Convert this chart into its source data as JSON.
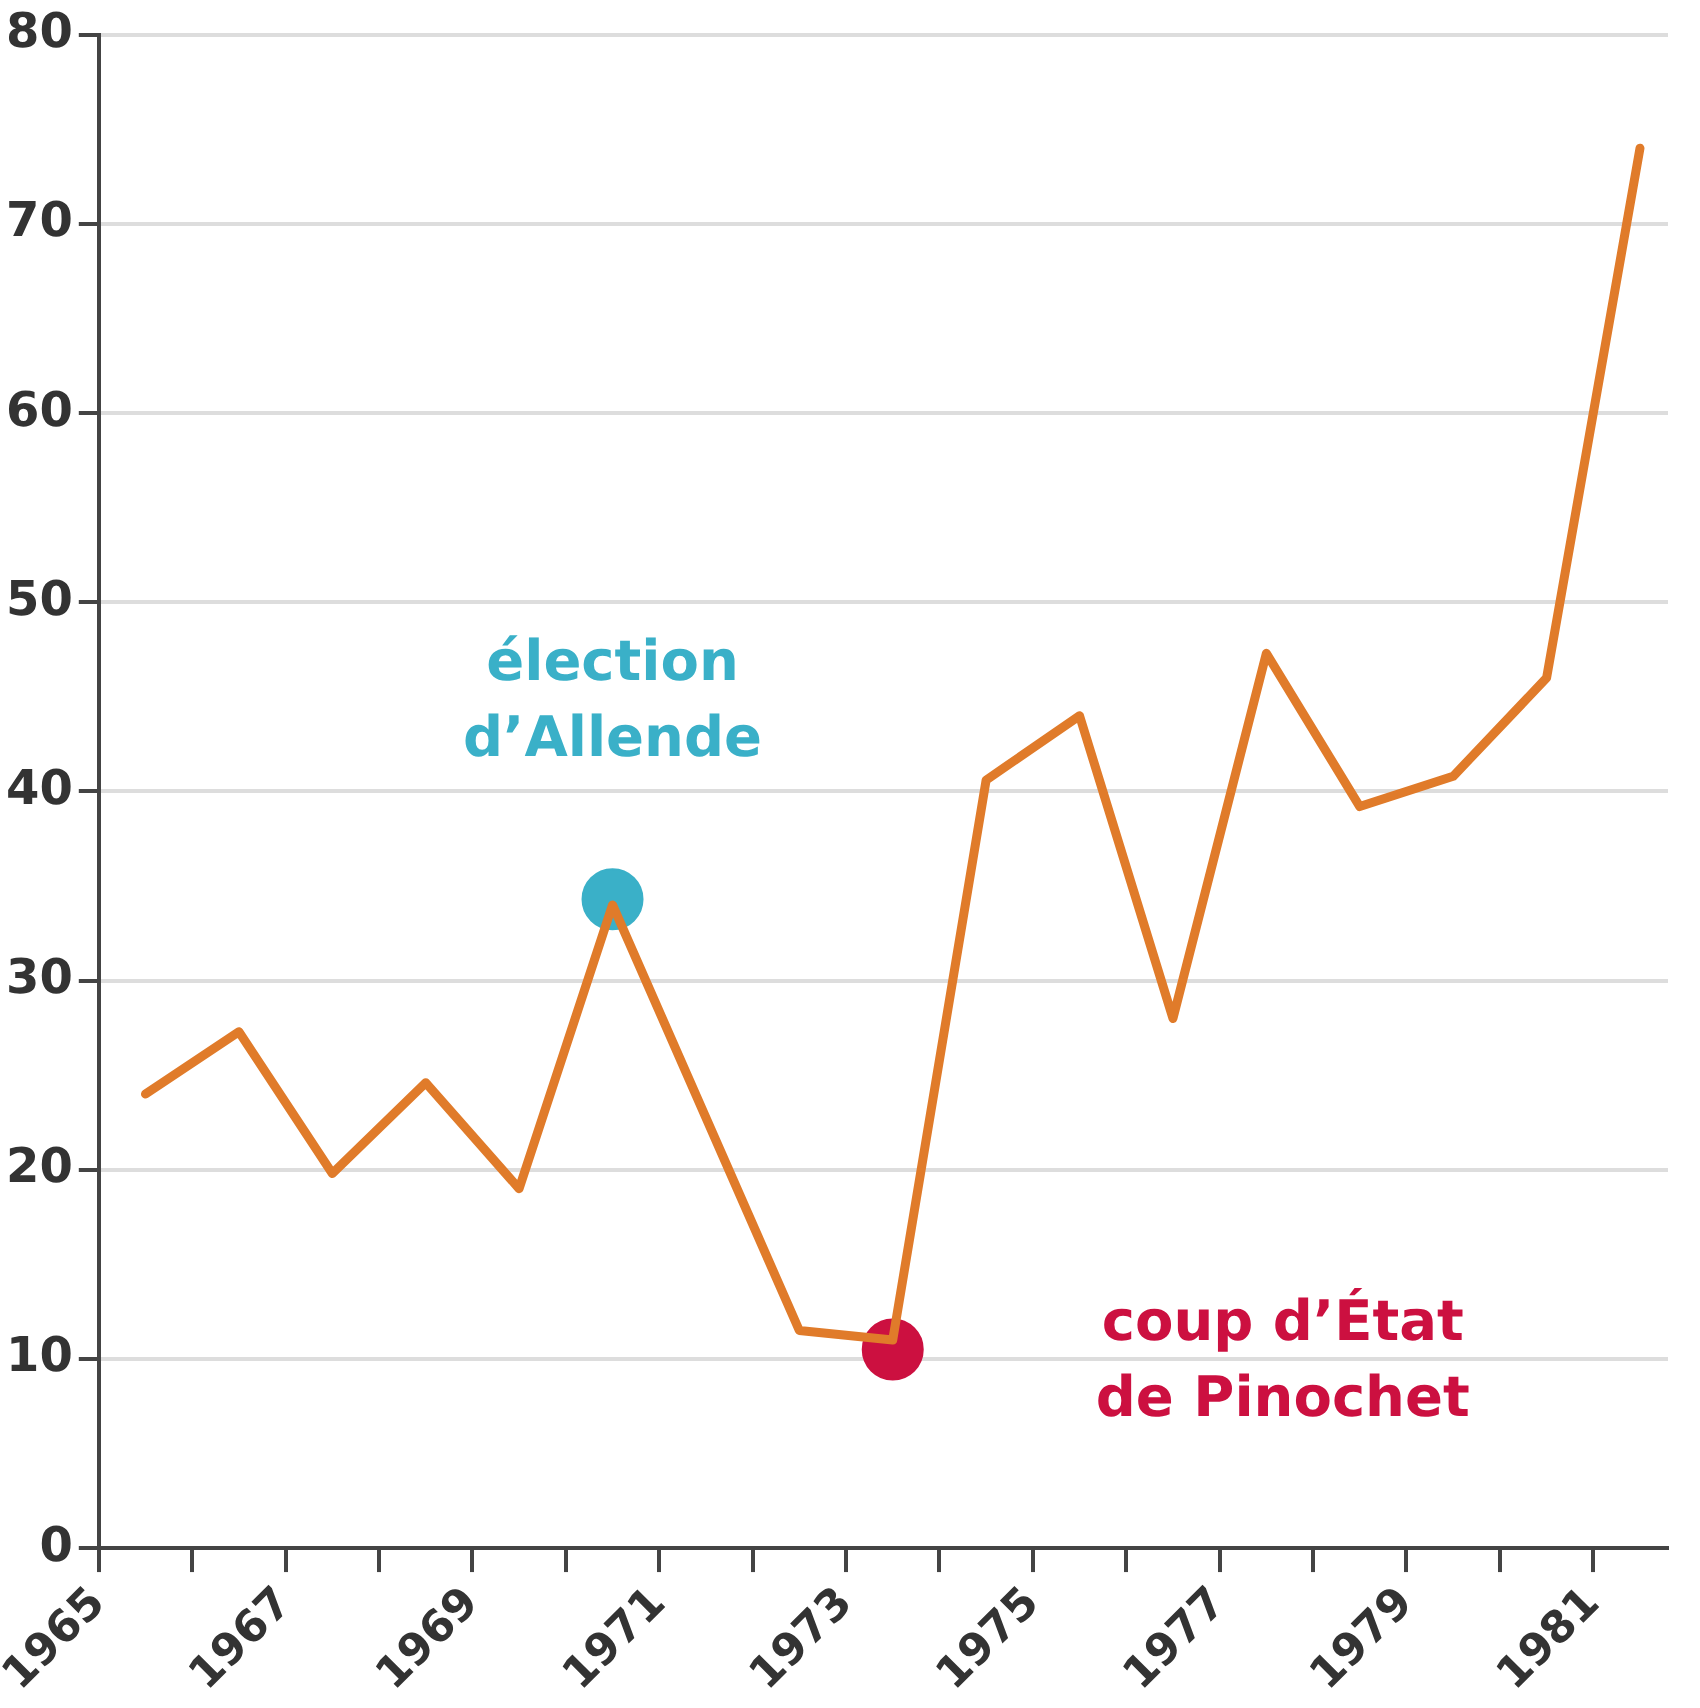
{
  "chart_data": {
    "type": "line",
    "x": [
      1965.5,
      1966.5,
      1967.5,
      1968.5,
      1969.5,
      1970.5,
      1972.5,
      1973.5,
      1974.5,
      1975.5,
      1976.5,
      1977.5,
      1978.5,
      1979.5,
      1980.5,
      1981.5
    ],
    "series": [
      {
        "color": "#e07b2a",
        "values": [
          24,
          27.3,
          19.8,
          24.6,
          19,
          34,
          11.5,
          11,
          40.6,
          44,
          28,
          47.3,
          39.2,
          40.8,
          46,
          74
        ]
      },
      {
        "type": "scatter",
        "x": [
          1970.5,
          1973.5
        ],
        "colors": [
          "#3ab0c8",
          "#cc1040"
        ],
        "values": [
          34.3,
          10.5
        ]
      }
    ],
    "line_style": "solid",
    "xlim": [
      1965,
      1981.8
    ],
    "xticks": [
      1965,
      {
        "value": 1966,
        "label": null
      },
      1967,
      {
        "value": 1968,
        "label": null
      },
      1969,
      {
        "value": 1970,
        "label": null
      },
      1971,
      {
        "value": 1972,
        "label": null
      },
      1973,
      {
        "value": 1974,
        "label": null
      },
      1975,
      {
        "value": 1976,
        "label": null
      },
      1977,
      {
        "value": 1978,
        "label": null
      },
      1979,
      {
        "value": 1980,
        "label": null
      },
      1981
    ],
    "ylim": [
      0,
      80
    ],
    "yticks": [
      0,
      10,
      20,
      30,
      40,
      50,
      60,
      70,
      80
    ],
    "grid": "y",
    "legend": false,
    "annotations": [
      "élection\nd’Allende",
      "coup d’État\nde Pinochet"
    ]
  }
}
